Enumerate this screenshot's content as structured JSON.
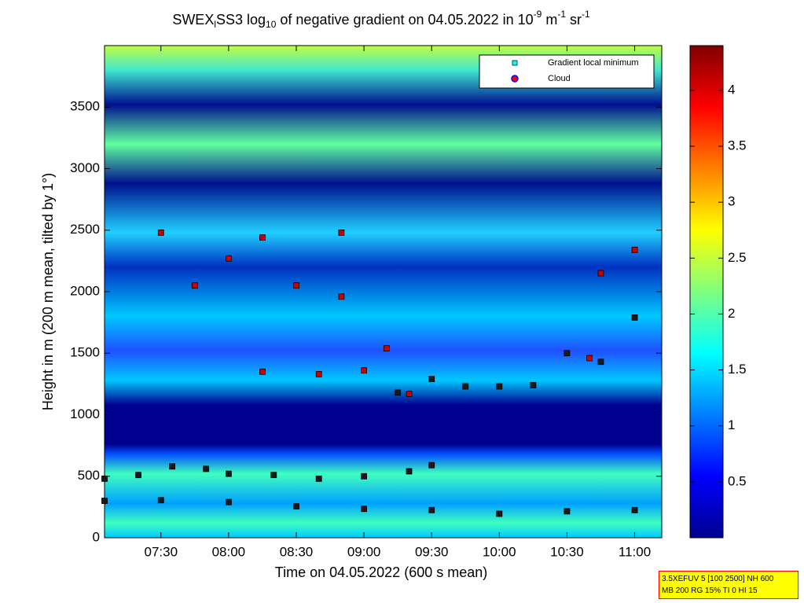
{
  "chart_data": {
    "type": "scatter",
    "title": [
      "SWEX",
      "l",
      "SS3 log",
      "10",
      " of negative gradient on 04.05.2022 in 10",
      "-9",
      " m",
      "-1",
      " sr",
      "-1"
    ],
    "x_label": "Time on 04.05.2022 (600 s mean)",
    "y_label": "Height in m (200 m mean, tilted by 1°)",
    "xlim": [
      "07:05",
      "11:12"
    ],
    "xticks": [
      "07:30",
      "08:00",
      "08:30",
      "09:00",
      "09:30",
      "10:00",
      "10:30",
      "11:00"
    ],
    "ylim": [
      0,
      4000
    ],
    "yticks": [
      0,
      500,
      1000,
      1500,
      2000,
      2500,
      3000,
      3500
    ],
    "colorbar": {
      "colormap": "jet",
      "clim": [
        0,
        4.4
      ],
      "ticks": [
        0.5,
        1,
        1.5,
        2,
        2.5,
        3,
        3.5,
        4
      ]
    },
    "series": [
      {
        "name": "Gradient local minimum",
        "color": "#00ffff",
        "point_color": "#1a1a1a",
        "marker": "square",
        "x": [
          "07:05",
          "07:30",
          "08:00",
          "08:30",
          "09:00",
          "09:30",
          "10:00",
          "10:30",
          "11:00",
          "07:05",
          "07:20",
          "07:35",
          "07:50",
          "08:00",
          "08:20",
          "08:40",
          "09:00",
          "09:20",
          "09:30",
          "09:15",
          "09:30",
          "09:45",
          "10:00",
          "10:15",
          "10:30",
          "10:45",
          "11:00"
        ],
        "y": [
          300,
          305,
          290,
          255,
          235,
          225,
          195,
          215,
          225,
          480,
          510,
          580,
          560,
          520,
          510,
          480,
          500,
          540,
          590,
          1180,
          1290,
          1230,
          1230,
          1240,
          1500,
          1430,
          1790
        ]
      },
      {
        "name": "Cloud",
        "color": "#ff0000",
        "point_color": "#cc0000",
        "marker": "square",
        "x": [
          "07:30",
          "07:45",
          "08:00",
          "08:15",
          "08:30",
          "08:50",
          "09:00",
          "09:10",
          "08:15",
          "08:40",
          "08:50",
          "09:20",
          "10:45",
          "11:00",
          "10:40"
        ],
        "y": [
          2480,
          2050,
          2270,
          2440,
          2050,
          1960,
          1360,
          1540,
          1350,
          1330,
          2480,
          1170,
          2150,
          2340,
          1460
        ]
      }
    ],
    "legend": "upper right",
    "footer": [
      "3.5XEFUV 5 [100 2500] NH 600",
      "MB 200 RG 15% TI 0 HI 15"
    ]
  }
}
